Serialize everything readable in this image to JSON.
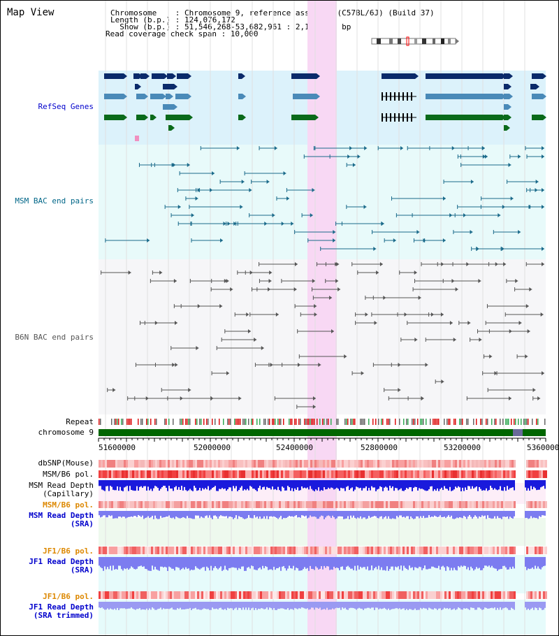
{
  "view_title": "Map View",
  "info_lines": [
    "Chromosome    : Chromosome 9, reference assembly (C57BL/6J) (Build 37)",
    "Length (b.p.) : 124,076,172",
    "  Show (b.p.) : 51,546,268-53,682,961 : 2,136,694 bp",
    "Read coverage check span : 10,000"
  ],
  "tracks": {
    "refseq": {
      "label": "RefSeq Genes",
      "color": "#0000cc"
    },
    "msm_bac": {
      "label": "MSM BAC end pairs",
      "color": "#006688"
    },
    "b6n_bac": {
      "label": "B6N BAC end pairs",
      "color": "#555555"
    },
    "repeat": {
      "label": "Repeat"
    },
    "chromosome": {
      "label": "chromosome 9"
    },
    "dbsnp": {
      "label": "dbSNP(Mouse)"
    },
    "msm_b6_pol_cap": {
      "label": "MSM/B6 pol."
    },
    "msm_depth_cap": {
      "label": "MSM Read Depth",
      "sublabel": "(Capillary)"
    },
    "msm_b6_pol_sra": {
      "label": "MSM/B6 pol.",
      "color": "#dd8800"
    },
    "msm_depth_sra": {
      "label": "MSM Read Depth",
      "sublabel": "(SRA)",
      "color": "#0000cc"
    },
    "jf1_b6_pol": {
      "label": "JF1/B6 pol.",
      "color": "#dd8800"
    },
    "jf1_depth": {
      "label": "JF1 Read Depth",
      "sublabel": "(SRA)",
      "color": "#0000cc"
    },
    "jf1_b6_pol_2": {
      "label": "JF1/B6 pol.",
      "color": "#dd8800"
    },
    "jf1_depth_trim": {
      "label": "JF1 Read Depth",
      "sublabel": "(SRA trimmed)",
      "color": "#0000cc"
    }
  },
  "axis_ticks": [
    "51600000",
    "52000000",
    "52400000",
    "52800000",
    "53200000",
    "53600000"
  ],
  "colors": {
    "refseq_bg": "#dcf2fb",
    "msm_bg": "#e8fafa",
    "b6n_bg": "#f6f6f8",
    "highlight": "#f8d8f4",
    "gene_dark": "#0a2a6a",
    "gene_mid": "#4a8ab8",
    "gene_green": "#0a6a1a",
    "chromosome_bar": "#006600",
    "depth_blue": "#1a1adc",
    "depth_light": "#7c7cf0",
    "snp_pink": "#f8a0a0"
  }
}
